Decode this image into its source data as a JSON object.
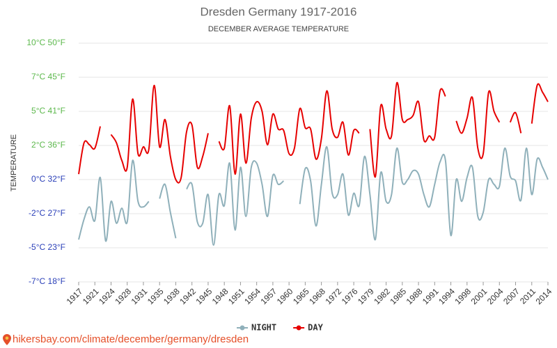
{
  "chart_data": {
    "type": "line",
    "title": "Dresden Germany 1917-2016",
    "subtitle": "DECEMBER AVERAGE TEMPERATURE",
    "y_label": "TEMPERATURE",
    "categories": [
      "1917",
      null,
      null,
      "1921",
      null,
      null,
      "1924",
      null,
      null,
      "1928",
      null,
      null,
      "1931",
      null,
      null,
      "1935",
      null,
      null,
      "1938",
      null,
      null,
      "1942",
      null,
      null,
      "1945",
      null,
      null,
      "1948",
      null,
      null,
      "1951",
      null,
      null,
      "1954",
      null,
      null,
      "1957",
      null,
      null,
      "1960",
      null,
      null,
      "1965",
      null,
      null,
      "1968",
      null,
      null,
      "1972",
      null,
      null,
      "1976",
      null,
      null,
      "1979",
      null,
      null,
      "1982",
      null,
      null,
      "1985",
      null,
      null,
      "1988",
      null,
      null,
      "1991",
      null,
      null,
      "1994",
      null,
      null,
      "1998",
      null,
      null,
      "2001",
      null,
      null,
      "2004",
      null,
      null,
      "2007",
      null,
      null,
      "2011",
      null,
      null,
      "2014"
    ],
    "series": [
      {
        "name": "NIGHT",
        "color": "#8fb0ba",
        "values": [
          -4.4,
          -2.9,
          -2.0,
          -3.0,
          0.15,
          -4.5,
          -1.6,
          -3.2,
          -2.1,
          -3.1,
          1.4,
          -1.6,
          -2.0,
          -1.6,
          null,
          -1.4,
          -0.35,
          -2.4,
          -4.3,
          null,
          -0.7,
          -0.35,
          -3.1,
          -3.2,
          -1.1,
          -4.8,
          -1.1,
          -1.9,
          1.2,
          -3.7,
          0.9,
          -2.7,
          0.9,
          1.2,
          -0.35,
          -2.7,
          0.3,
          -0.35,
          -0.1,
          null,
          null,
          -1.8,
          0.8,
          -0.1,
          -3.4,
          -0.35,
          2.4,
          -1.0,
          -1.1,
          0.4,
          -2.6,
          -1.0,
          -1.9,
          1.7,
          -1.1,
          -4.4,
          0.5,
          -1.6,
          -1.1,
          2.3,
          -0.2,
          0,
          0.65,
          0.4,
          -1.1,
          -2.0,
          -0.35,
          1.3,
          1.4,
          -4.1,
          0,
          -1.6,
          0.15,
          0.9,
          -2.7,
          -2.4,
          0,
          -0.35,
          -0.5,
          2.3,
          0.25,
          -0.1,
          -1.5,
          2.3,
          -1.1,
          1.5,
          0.9,
          0
        ]
      },
      {
        "name": "DAY",
        "color": "#e60000",
        "values": [
          0.4,
          2.7,
          2.55,
          2.3,
          3.9,
          null,
          3.3,
          2.7,
          1.4,
          0.9,
          5.9,
          1.9,
          2.4,
          2.2,
          6.9,
          2.4,
          4.4,
          1.7,
          0.0,
          0.15,
          3.5,
          4.0,
          0.9,
          1.7,
          3.4,
          null,
          2.8,
          2.3,
          5.4,
          0.4,
          4.8,
          1.2,
          4.5,
          5.7,
          5.0,
          2.55,
          4.8,
          3.7,
          3.6,
          1.9,
          2.3,
          5.2,
          3.8,
          3.7,
          1.5,
          3.0,
          6.5,
          3.7,
          3.1,
          4.2,
          1.8,
          3.6,
          3.4,
          null,
          3.7,
          0.2,
          5.4,
          3.7,
          3.2,
          7.1,
          4.4,
          4.4,
          4.7,
          5.7,
          2.9,
          3.2,
          3.1,
          6.5,
          6.1,
          null,
          4.3,
          3.4,
          4.5,
          6.0,
          2.3,
          1.9,
          6.4,
          5.0,
          4.2,
          null,
          4.2,
          4.9,
          3.4,
          null,
          4.1,
          6.9,
          6.4,
          5.7
        ]
      }
    ],
    "ylim": [
      -7.5,
      10
    ],
    "yticks": [
      {
        "value": -7.5,
        "label": "-7°C 18°F"
      },
      {
        "value": -5,
        "label": "-5°C 23°F"
      },
      {
        "value": -2.5,
        "label": "-2°C 27°F"
      },
      {
        "value": 0,
        "label": "0°C 32°F"
      },
      {
        "value": 2.5,
        "label": "2°C 36°F"
      },
      {
        "value": 5,
        "label": "5°C 41°F"
      },
      {
        "value": 7.5,
        "label": "7°C 45°F"
      },
      {
        "value": 10,
        "label": "10°C 50°F"
      }
    ],
    "ytick_color_above_zero": "#5cb84c",
    "ytick_color_other": "#2a3fb8",
    "grid": true,
    "legend": "bottom",
    "source": "hikersbay.com/climate/december/germany/dresden"
  }
}
